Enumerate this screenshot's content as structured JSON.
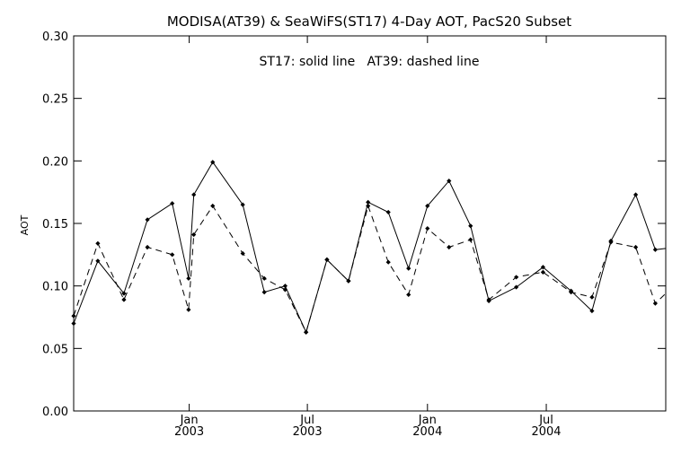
{
  "chart_data": {
    "type": "line",
    "title": "MODISA(AT39) & SeaWiFS(ST17) 4-Day AOT, PacS20 Subset",
    "annotation": "ST17: solid line   AT39: dashed line",
    "xlabel": "",
    "ylabel": "AOT",
    "ylim": [
      0.0,
      0.3
    ],
    "yticks": [
      "0.00",
      "0.05",
      "0.10",
      "0.15",
      "0.20",
      "0.25",
      "0.30"
    ],
    "yticks_values": [
      0.0,
      0.05,
      0.1,
      0.15,
      0.2,
      0.25,
      0.3
    ],
    "xlim": [
      "2002-07-08",
      "2004-12-31"
    ],
    "xticks": [
      {
        "date": "2003-01-01",
        "month": "Jan",
        "year": "2003"
      },
      {
        "date": "2003-07-01",
        "month": "Jul",
        "year": "2003"
      },
      {
        "date": "2004-01-01",
        "month": "Jan",
        "year": "2004"
      },
      {
        "date": "2004-07-01",
        "month": "Jul",
        "year": "2004"
      }
    ],
    "grid": false,
    "legend": "none",
    "series": [
      {
        "name": "ST17",
        "style": "solid",
        "color": "#000000",
        "x": [
          "2002-07-08",
          "2002-08-14",
          "2002-09-23",
          "2002-10-29",
          "2002-12-06",
          "2002-12-31",
          "2003-01-08",
          "2003-02-06",
          "2003-03-24",
          "2003-04-26",
          "2003-05-28",
          "2003-06-29",
          "2003-07-31",
          "2003-09-02",
          "2003-10-02",
          "2003-11-02",
          "2003-12-03",
          "2004-01-01",
          "2004-02-03",
          "2004-03-07",
          "2004-04-04",
          "2004-05-16",
          "2004-06-26",
          "2004-08-08",
          "2004-09-09",
          "2004-10-08",
          "2004-11-15",
          "2004-12-15",
          "2004-12-31"
        ],
        "y": [
          0.07,
          0.12,
          0.094,
          0.153,
          0.166,
          0.106,
          0.173,
          0.199,
          0.165,
          0.095,
          0.1,
          0.063,
          0.121,
          0.104,
          0.167,
          0.159,
          0.114,
          0.164,
          0.184,
          0.148,
          0.088,
          0.099,
          0.115,
          0.096,
          0.08,
          0.136,
          0.173,
          0.129,
          0.13
        ]
      },
      {
        "name": "AT39",
        "style": "dashed",
        "color": "#000000",
        "x": [
          "2002-07-08",
          "2002-08-14",
          "2002-09-23",
          "2002-10-29",
          "2002-12-06",
          "2002-12-31",
          "2003-01-08",
          "2003-02-06",
          "2003-03-24",
          "2003-04-26",
          "2003-05-28",
          "2003-06-29",
          "2003-07-31",
          "2003-09-02",
          "2003-10-02",
          "2003-11-02",
          "2003-12-03",
          "2004-01-01",
          "2004-02-03",
          "2004-03-07",
          "2004-04-04",
          "2004-05-16",
          "2004-06-26",
          "2004-08-08",
          "2004-09-09",
          "2004-10-08",
          "2004-11-15",
          "2004-12-15",
          "2004-12-31"
        ],
        "y": [
          0.076,
          0.134,
          0.089,
          0.131,
          0.125,
          0.081,
          0.141,
          0.164,
          0.126,
          0.106,
          0.097,
          0.063,
          0.121,
          0.104,
          0.164,
          0.119,
          0.093,
          0.146,
          0.131,
          0.137,
          0.089,
          0.107,
          0.111,
          0.095,
          0.091,
          0.135,
          0.131,
          0.086,
          0.094
        ]
      }
    ]
  }
}
